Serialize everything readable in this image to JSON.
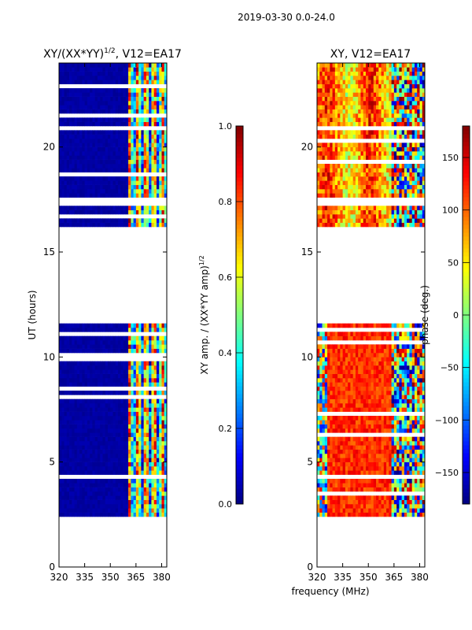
{
  "suptitle": "2019-03-30 0.0-24.0",
  "colors": {
    "jet": [
      "#00007f",
      "#0000ff",
      "#007fff",
      "#00ffff",
      "#7fff7f",
      "#ffff00",
      "#ff7f00",
      "#ff0000",
      "#7f0000"
    ],
    "background": "#ffffff",
    "gap": "#ffffff"
  },
  "chart_data": [
    {
      "type": "heatmap",
      "title_main": "XY/(XX*YY)",
      "title_sup": "1/2",
      "title_tail": ", V12=EA17",
      "xlabel": "",
      "ylabel": "UT (hours)",
      "xlim": [
        320,
        383
      ],
      "ylim": [
        0,
        24
      ],
      "xticks": [
        320,
        335,
        350,
        365,
        380
      ],
      "yticks": [
        0,
        5,
        10,
        15,
        20
      ],
      "colorbar": {
        "label_main": "XY amp. / (XX*YY amp)",
        "label_sup": "1/2",
        "range": [
          0.0,
          1.0
        ],
        "ticks": [
          "0.0",
          "0.2",
          "0.4",
          "0.6",
          "0.8",
          "1.0"
        ],
        "tick_values": [
          0.0,
          0.2,
          0.4,
          0.6,
          0.8,
          1.0
        ]
      },
      "data_blocks_hours": [
        [
          2.4,
          4.2
        ],
        [
          4.5,
          11.7
        ],
        [
          16.2,
          17.3
        ],
        [
          17.6,
          20.8
        ],
        [
          21.0,
          24.0
        ]
      ],
      "active_band_mhz": [
        360,
        383
      ],
      "value_outside_band": 0.02,
      "value_in_band": 0.5
    },
    {
      "type": "heatmap",
      "title_main": "XY, V12=EA17",
      "xlabel": "frequency (MHz)",
      "ylabel": "",
      "xlim": [
        320,
        383
      ],
      "ylim": [
        0,
        24
      ],
      "xticks": [
        320,
        335,
        350,
        365,
        380
      ],
      "yticks": [
        0,
        5,
        10,
        15,
        20
      ],
      "colorbar": {
        "label_main": "phase (deg.)",
        "range": [
          -180,
          180
        ],
        "ticks": [
          "−150",
          "−100",
          "−50",
          "0",
          "50",
          "100",
          "150"
        ],
        "tick_values": [
          -150,
          -100,
          -50,
          0,
          50,
          100,
          150
        ]
      },
      "data_blocks_hours": [
        [
          2.4,
          4.2
        ],
        [
          4.5,
          11.7
        ],
        [
          16.2,
          17.3
        ],
        [
          17.6,
          20.8
        ],
        [
          21.0,
          24.0
        ]
      ],
      "phase_trend_deg": 120,
      "noisy_band_mhz": [
        363,
        383
      ]
    }
  ]
}
